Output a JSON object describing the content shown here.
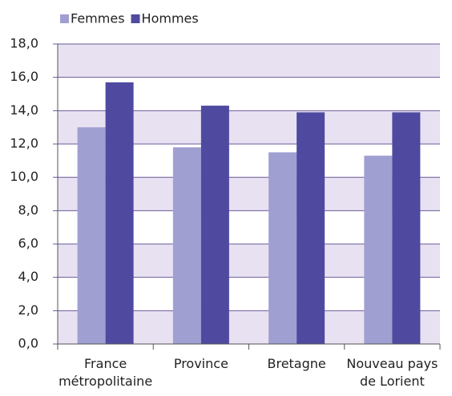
{
  "chart_data": {
    "type": "bar",
    "categories": [
      "France métropolitaine",
      "Province",
      "Bretagne",
      "Nouveau pays de Lorient"
    ],
    "series": [
      {
        "name": "Femmes",
        "color": "#a09fd2",
        "values": [
          13.0,
          11.8,
          11.5,
          11.3
        ]
      },
      {
        "name": "Hommes",
        "color": "#4f4aa0",
        "values": [
          15.7,
          14.3,
          13.9,
          13.9
        ]
      }
    ],
    "ylim": [
      0,
      18
    ],
    "yticks": [
      {
        "value": 0,
        "label": "0,0"
      },
      {
        "value": 2,
        "label": "2,0"
      },
      {
        "value": 4,
        "label": "4,0"
      },
      {
        "value": 6,
        "label": "6,0"
      },
      {
        "value": 8,
        "label": "8,0"
      },
      {
        "value": 10,
        "label": "10,0"
      },
      {
        "value": 12,
        "label": "12,0"
      },
      {
        "value": 14,
        "label": "14,0"
      },
      {
        "value": 16,
        "label": "16,0"
      },
      {
        "value": 18,
        "label": "18,0"
      }
    ],
    "grid": true,
    "legend": "top"
  }
}
